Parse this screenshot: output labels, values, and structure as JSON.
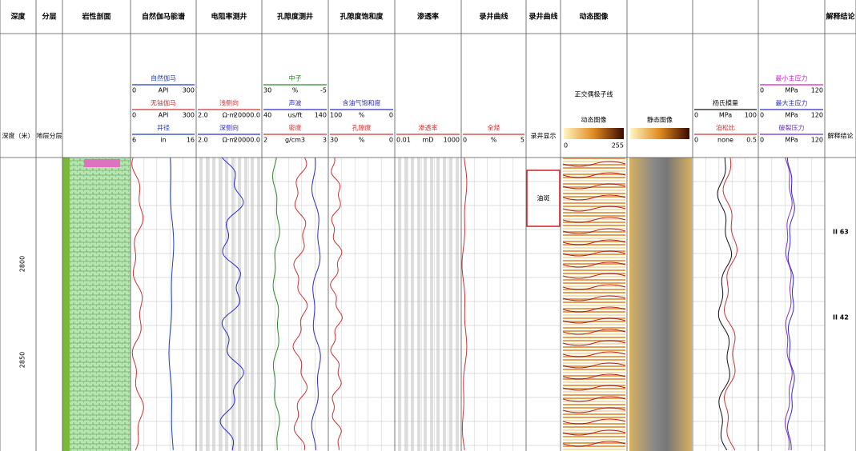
{
  "columns": [
    {
      "title": "深度",
      "subtitle": "深度（米）"
    },
    {
      "title": "分层",
      "subtitle": "地层分层"
    },
    {
      "title": "岩性剖面"
    },
    {
      "title": "自然伽马能谱",
      "curves": [
        {
          "name": "自然伽马",
          "min": "0",
          "unit": "API",
          "max": "300",
          "color": "#1f3fbf"
        },
        {
          "name": "无铀伽马",
          "min": "0",
          "unit": "API",
          "max": "300",
          "color": "#d03030"
        },
        {
          "name": "井径",
          "min": "6",
          "unit": "in",
          "max": "16",
          "color": "#1f3fbf"
        }
      ]
    },
    {
      "title": "电阻率测井",
      "curves": [
        {
          "name": "浅侧向",
          "min": "2.0",
          "unit": "Ω·m",
          "max": "20000.0",
          "color": "#d03030"
        },
        {
          "name": "深侧向",
          "min": "2.0",
          "unit": "Ω·m",
          "max": "20000.0",
          "color": "#2a2ad0"
        }
      ]
    },
    {
      "title": "孔隙度测井",
      "curves": [
        {
          "name": "中子",
          "min": "30",
          "unit": "%",
          "max": "-5",
          "color": "#2a8a2a"
        },
        {
          "name": "声波",
          "min": "40",
          "unit": "us/ft",
          "max": "140",
          "color": "#2a2ad0"
        },
        {
          "name": "密度",
          "min": "2",
          "unit": "g/cm3",
          "max": "3",
          "color": "#d03030"
        }
      ]
    },
    {
      "title": "孔隙度饱和度",
      "curves": [
        {
          "name": "含油气饱和度",
          "min": "100",
          "unit": "%",
          "max": "0",
          "color": "#2a2ad0"
        },
        {
          "name": "孔隙度",
          "min": "30",
          "unit": "%",
          "max": "0",
          "color": "#d03030"
        }
      ]
    },
    {
      "title": "渗透率",
      "curves": [
        {
          "name": "渗透率",
          "min": "0.01",
          "unit": "mD",
          "max": "1000",
          "color": "#d03030"
        }
      ]
    },
    {
      "title": "录井曲线",
      "curves": [
        {
          "name": "全烃",
          "min": "0",
          "unit": "%",
          "max": "5",
          "color": "#d03030"
        }
      ]
    },
    {
      "title": "录井曲线",
      "subtitle": "录井显示",
      "show": "油斑"
    },
    {
      "title": "动态图像",
      "subtitle": "正交偶极子线",
      "bar": "动态图像",
      "bar_min": "0",
      "bar_max": "255"
    },
    {
      "title": "",
      "bar": "静态图像"
    },
    {
      "title": "",
      "curves": [
        {
          "name": "杨氏模量",
          "min": "0",
          "unit": "MPa",
          "max": "100",
          "color": "#111111"
        },
        {
          "name": "泊松比",
          "min": "0",
          "unit": "none",
          "max": "0.5",
          "color": "#d03030"
        }
      ]
    },
    {
      "title": "",
      "curves": [
        {
          "name": "最小主应力",
          "min": "0",
          "unit": "MPa",
          "max": "120",
          "color": "#d020d0"
        },
        {
          "name": "最大主应力",
          "min": "0",
          "unit": "MPa",
          "max": "120",
          "color": "#2a2ad0"
        },
        {
          "name": "破裂压力",
          "min": "0",
          "unit": "MPa",
          "max": "120",
          "color": "#6a2ad0"
        }
      ]
    },
    {
      "title": "解释结论",
      "subtitle": "解释结论",
      "conclusions": [
        "II 63",
        "II 42"
      ]
    }
  ],
  "depth_labels": [
    "2800",
    "2850"
  ]
}
